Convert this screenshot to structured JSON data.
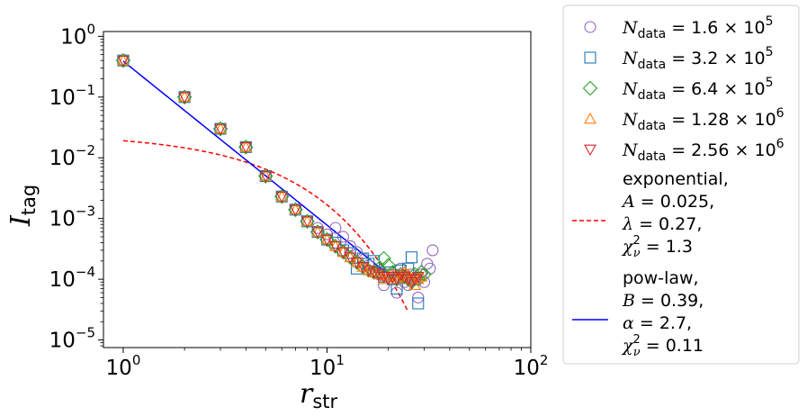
{
  "chart_data": {
    "type": "scatter",
    "title": "",
    "xlabel": {
      "base": "r",
      "sub": "str"
    },
    "ylabel": {
      "base": "I",
      "sub": "tag"
    },
    "xscale": "log",
    "yscale": "log",
    "xlim": [
      0.8,
      100
    ],
    "ylim": [
      7.5e-06,
      1.2
    ],
    "xticks": [
      {
        "value": 1,
        "base": "10",
        "exp": "0"
      },
      {
        "value": 10,
        "base": "10",
        "exp": "1"
      },
      {
        "value": 100,
        "base": "10",
        "exp": "2"
      }
    ],
    "yticks": [
      {
        "value": 1,
        "base": "10",
        "exp": "0"
      },
      {
        "value": 0.1,
        "base": "10",
        "exp": "−1"
      },
      {
        "value": 0.01,
        "base": "10",
        "exp": "−2"
      },
      {
        "value": 0.001,
        "base": "10",
        "exp": "−3"
      },
      {
        "value": 0.0001,
        "base": "10",
        "exp": "−4"
      },
      {
        "value": 1e-05,
        "base": "10",
        "exp": "−5"
      }
    ],
    "legend_position": "outside-right",
    "series": [
      {
        "name": "N_data = 1.6 × 10^5",
        "legend": {
          "sym": "N",
          "sub": "data",
          "rest": " = 1.6 × 10",
          "exp": "5"
        },
        "marker": "circle",
        "color": "#9467bd",
        "x": [
          1,
          2,
          3,
          4,
          5,
          6,
          7,
          8,
          9,
          10,
          11,
          12,
          13,
          14,
          15,
          16,
          17,
          18,
          19,
          20,
          21,
          22,
          23,
          24,
          25,
          26,
          27,
          28,
          29,
          30,
          31,
          32,
          33
        ],
        "y": [
          0.4,
          0.1,
          0.03,
          0.015,
          0.005,
          0.0023,
          0.0014,
          0.0009,
          0.0007,
          0.00055,
          0.0007,
          0.0005,
          0.00035,
          0.00028,
          0.00022,
          0.00017,
          0.00013,
          0.00012,
          8e-05,
          0.00012,
          0.0001,
          6e-05,
          0.00015,
          9e-05,
          8e-05,
          0.00012,
          0.0001,
          5e-05,
          0.00012,
          9e-05,
          0.00018,
          0.00015,
          0.0003
        ]
      },
      {
        "name": "N_data = 3.2 × 10^5",
        "legend": {
          "sym": "N",
          "sub": "data",
          "rest": " = 3.2 × 10",
          "exp": "5"
        },
        "marker": "square",
        "color": "#1f77b4",
        "x": [
          1,
          2,
          3,
          4,
          5,
          6,
          7,
          8,
          9,
          10,
          11,
          12,
          13,
          14,
          15,
          16,
          17,
          18,
          19,
          20,
          21,
          22,
          23,
          24,
          25,
          26,
          27,
          28
        ],
        "y": [
          0.4,
          0.1,
          0.03,
          0.015,
          0.005,
          0.0023,
          0.0014,
          0.0009,
          0.0006,
          0.00045,
          0.0004,
          0.0003,
          0.00027,
          0.00015,
          0.00022,
          0.00018,
          0.0002,
          0.00013,
          0.00011,
          0.00013,
          0.0001,
          7e-05,
          0.00014,
          0.00011,
          0.00015,
          0.00023,
          0.0001,
          4e-05
        ]
      },
      {
        "name": "N_data = 6.4 × 10^5",
        "legend": {
          "sym": "N",
          "sub": "data",
          "rest": " = 6.4 × 10",
          "exp": "5"
        },
        "marker": "diamond",
        "color": "#2ca02c",
        "x": [
          1,
          2,
          3,
          4,
          5,
          6,
          7,
          8,
          9,
          10,
          11,
          12,
          13,
          14,
          15,
          16,
          17,
          18,
          19,
          20,
          21,
          22,
          23,
          24,
          25,
          26,
          27,
          28,
          29,
          30
        ],
        "y": [
          0.4,
          0.1,
          0.03,
          0.015,
          0.005,
          0.0023,
          0.0014,
          0.0009,
          0.0006,
          0.00045,
          0.00035,
          0.00028,
          0.00023,
          0.00019,
          0.00016,
          0.00014,
          0.00013,
          0.00015,
          0.00022,
          0.00017,
          0.00013,
          0.0001,
          0.00012,
          0.00011,
          0.0001,
          9e-05,
          0.00012,
          0.0001,
          0.00013,
          0.00012
        ]
      },
      {
        "name": "N_data = 1.28 × 10^6",
        "legend": {
          "sym": "N",
          "sub": "data",
          "rest": " = 1.28 × 10",
          "exp": "6"
        },
        "marker": "triangle-up",
        "color": "#ff7f0e",
        "x": [
          1,
          2,
          3,
          4,
          5,
          6,
          7,
          8,
          9,
          10,
          11,
          12,
          13,
          14,
          15,
          16,
          17,
          18,
          19,
          20,
          21,
          22,
          23,
          24,
          25,
          26,
          27,
          28,
          29
        ],
        "y": [
          0.4,
          0.1,
          0.03,
          0.015,
          0.005,
          0.0023,
          0.0014,
          0.0009,
          0.0006,
          0.00045,
          0.00035,
          0.00028,
          0.00023,
          0.00019,
          0.00016,
          0.00014,
          0.00013,
          0.00012,
          0.0001,
          0.00011,
          0.00012,
          0.0001,
          0.00011,
          0.00013,
          0.00012,
          0.0001,
          8e-05,
          0.0001,
          0.00011
        ]
      },
      {
        "name": "N_data = 2.56 × 10^6",
        "legend": {
          "sym": "N",
          "sub": "data",
          "rest": " = 2.56 × 10",
          "exp": "6"
        },
        "marker": "triangle-down",
        "color": "#d62728",
        "x": [
          1,
          2,
          3,
          4,
          5,
          6,
          7,
          8,
          9,
          10,
          11,
          12,
          13,
          14,
          15,
          16,
          17,
          18,
          19,
          20,
          21,
          22,
          23,
          24,
          25,
          26,
          27,
          28
        ],
        "y": [
          0.4,
          0.1,
          0.03,
          0.015,
          0.005,
          0.0023,
          0.0014,
          0.0009,
          0.0006,
          0.00045,
          0.00035,
          0.00028,
          0.00023,
          0.00019,
          0.00016,
          0.00014,
          0.00013,
          0.00012,
          0.00011,
          0.0001,
          0.00011,
          0.0001,
          0.00012,
          0.00011,
          0.0001,
          9e-05,
          0.0001,
          0.00011
        ]
      }
    ],
    "fits": [
      {
        "name": "exponential",
        "style": "dashed",
        "color": "#ff0000",
        "formula": "A * exp(-lambda * r)",
        "params": {
          "A": 0.025,
          "lambda": 0.27,
          "chi2_nu": 1.3
        },
        "x_range": [
          1,
          25
        ],
        "legend_lines": [
          {
            "text": "exponential,"
          },
          {
            "sym": "A",
            "rest": " = 0.025,"
          },
          {
            "sym": "λ",
            "rest": " = 0.27,"
          },
          {
            "chi": true,
            "rest": " = 1.3"
          }
        ]
      },
      {
        "name": "pow-law",
        "style": "solid",
        "color": "#0000ff",
        "formula": "B * r^(-alpha)",
        "params": {
          "B": 0.39,
          "alpha": 2.7,
          "chi2_nu": 0.11
        },
        "x_range": [
          1,
          23
        ],
        "legend_lines": [
          {
            "text": "pow-law,"
          },
          {
            "sym": "B",
            "rest": " = 0.39,"
          },
          {
            "sym": "α",
            "rest": " = 2.7,"
          },
          {
            "chi": true,
            "rest": " = 0.11"
          }
        ]
      }
    ]
  }
}
